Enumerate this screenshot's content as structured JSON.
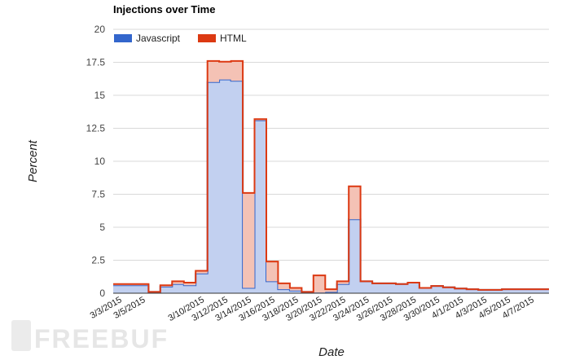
{
  "watermark": "FREEBUF",
  "chart_data": {
    "type": "area",
    "title": "Injections over Time",
    "xlabel": "Date",
    "ylabel": "Percent",
    "ylim": [
      0,
      20
    ],
    "yticks": [
      "0",
      "2.5",
      "5",
      "7.5",
      "10",
      "12.5",
      "15",
      "17.5",
      "20"
    ],
    "grid": true,
    "legend_position": "top-left",
    "stacked": true,
    "step": true,
    "x": [
      "3/3/2015",
      "3/4/2015",
      "3/5/2015",
      "3/6/2015",
      "3/7/2015",
      "3/8/2015",
      "3/9/2015",
      "3/10/2015",
      "3/11/2015",
      "3/12/2015",
      "3/13/2015",
      "3/14/2015",
      "3/15/2015",
      "3/16/2015",
      "3/17/2015",
      "3/18/2015",
      "3/19/2015",
      "3/20/2015",
      "3/21/2015",
      "3/22/2015",
      "3/23/2015",
      "3/24/2015",
      "3/25/2015",
      "3/26/2015",
      "3/27/2015",
      "3/28/2015",
      "3/29/2015",
      "3/30/2015",
      "3/31/2015",
      "4/1/2015",
      "4/2/2015",
      "4/3/2015",
      "4/4/2015",
      "4/5/2015",
      "4/6/2015",
      "4/7/2015",
      "4/8/2015"
    ],
    "xtick_labels": [
      "3/3/2015",
      "3/5/2015",
      "3/10/2015",
      "3/12/2015",
      "3/14/2015",
      "3/16/2015",
      "3/18/2015",
      "3/20/2015",
      "3/22/2015",
      "3/24/2015",
      "3/26/2015",
      "3/28/2015",
      "3/30/2015",
      "4/1/2015",
      "4/3/2015",
      "4/5/2015",
      "4/7/2015"
    ],
    "series": [
      {
        "name": "Javascript",
        "color": "#3366cc",
        "fill": "#c2d0f0",
        "values": [
          0.6,
          0.6,
          0.6,
          0.1,
          0.5,
          0.7,
          0.6,
          1.5,
          16.0,
          16.2,
          16.1,
          0.4,
          13.1,
          0.9,
          0.3,
          0.2,
          0.1,
          0.05,
          0.1,
          0.7,
          5.6,
          0.9,
          0.75,
          0.75,
          0.7,
          0.8,
          0.4,
          0.55,
          0.45,
          0.35,
          0.3,
          0.25,
          0.25,
          0.3,
          0.3,
          0.3,
          0.3
        ]
      },
      {
        "name": "HTML",
        "color": "#dc3912",
        "fill": "#f4c2b5",
        "values": [
          0.1,
          0.1,
          0.1,
          0.0,
          0.1,
          0.2,
          0.2,
          0.2,
          1.6,
          1.35,
          1.5,
          7.2,
          0.1,
          1.5,
          0.45,
          0.2,
          0.0,
          1.3,
          0.2,
          0.2,
          2.5,
          0.0,
          0.0,
          0.0,
          0.0,
          0.0,
          0.0,
          0.0,
          0.0,
          0.0,
          0.0,
          0.0,
          0.0,
          0.0,
          0.0,
          0.0,
          0.0
        ]
      }
    ]
  }
}
